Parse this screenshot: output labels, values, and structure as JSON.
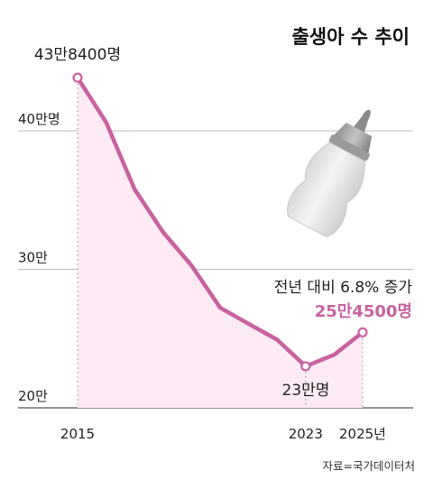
{
  "chart_data": {
    "type": "area",
    "title": "출생아 수 추이",
    "x": [
      2015,
      2016,
      2017,
      2018,
      2019,
      2020,
      2021,
      2022,
      2023,
      2024,
      2025
    ],
    "values": [
      438400,
      406200,
      357800,
      326800,
      302700,
      272300,
      260600,
      249200,
      230000,
      238300,
      254500
    ],
    "ylim": [
      200000,
      460000
    ],
    "y_ticks": [
      {
        "value": 400000,
        "label": "40만명"
      },
      {
        "value": 300000,
        "label": "30만"
      },
      {
        "value": 200000,
        "label": "20만"
      }
    ],
    "x_ticks": [
      {
        "value": 2015,
        "label": "2015"
      },
      {
        "value": 2023,
        "label": "2023"
      },
      {
        "value": 2025,
        "label": "2025년"
      }
    ],
    "annotations": {
      "start_label": "43만8400명",
      "min_label": "23만명",
      "end_note": "전년 대비 6.8% 증가",
      "end_label": "25만4500명"
    },
    "grid": true,
    "line_color": "#C9619F",
    "fill_color": "#FCEAF4",
    "highlight_color": "#C9619F"
  },
  "source": "자료=국가데이터처",
  "illustration": "baby-bottle-icon"
}
